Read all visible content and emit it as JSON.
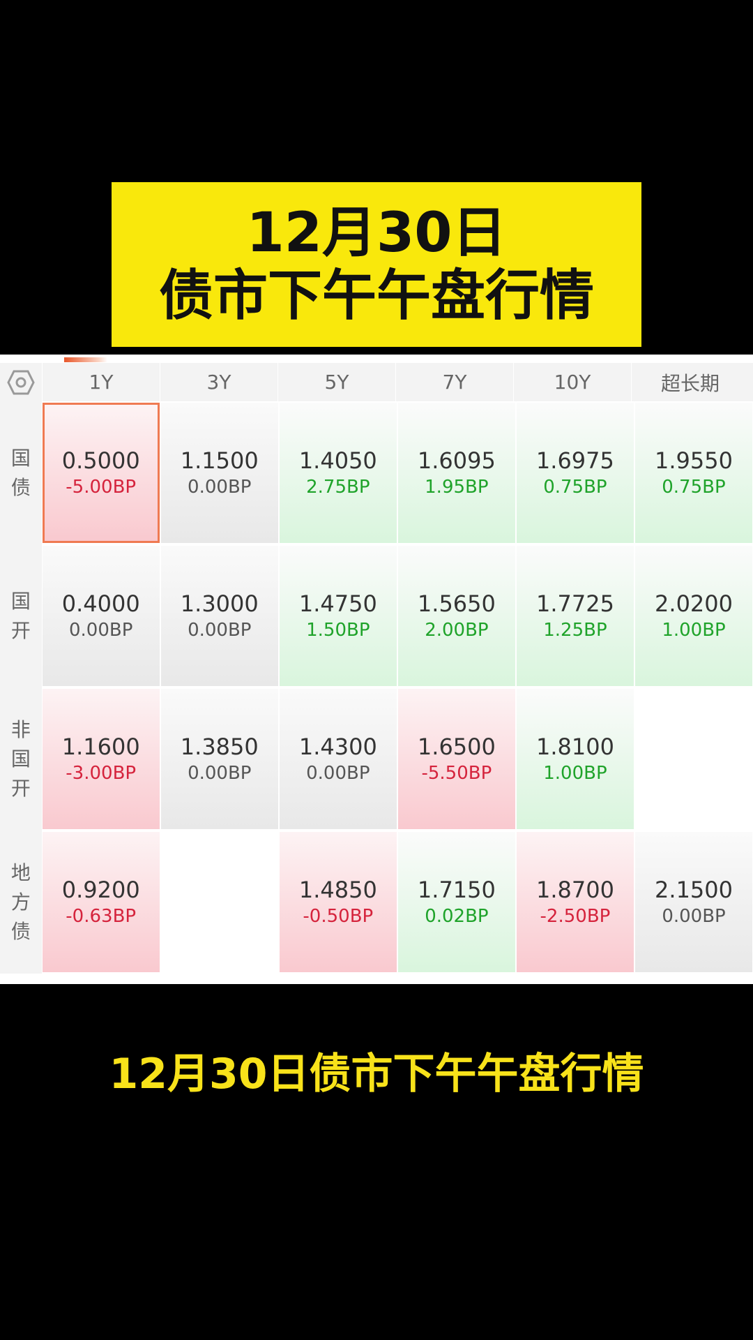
{
  "banner": {
    "line1": "12月30日",
    "line2": "债市下午午盘行情"
  },
  "table": {
    "columns": [
      "1Y",
      "3Y",
      "5Y",
      "7Y",
      "10Y",
      "超长期"
    ],
    "rows": [
      {
        "label": [
          "国",
          "债"
        ],
        "cells": [
          {
            "value": "0.5000",
            "change": "-5.00BP",
            "trend": "down",
            "selected": true
          },
          {
            "value": "1.1500",
            "change": "0.00BP",
            "trend": "flat"
          },
          {
            "value": "1.4050",
            "change": "2.75BP",
            "trend": "up"
          },
          {
            "value": "1.6095",
            "change": "1.95BP",
            "trend": "up"
          },
          {
            "value": "1.6975",
            "change": "0.75BP",
            "trend": "up"
          },
          {
            "value": "1.9550",
            "change": "0.75BP",
            "trend": "up"
          }
        ]
      },
      {
        "label": [
          "国",
          "开"
        ],
        "cells": [
          {
            "value": "0.4000",
            "change": "0.00BP",
            "trend": "flat"
          },
          {
            "value": "1.3000",
            "change": "0.00BP",
            "trend": "flat"
          },
          {
            "value": "1.4750",
            "change": "1.50BP",
            "trend": "up"
          },
          {
            "value": "1.5650",
            "change": "2.00BP",
            "trend": "up"
          },
          {
            "value": "1.7725",
            "change": "1.25BP",
            "trend": "up"
          },
          {
            "value": "2.0200",
            "change": "1.00BP",
            "trend": "up"
          }
        ]
      },
      {
        "label": [
          "非",
          "国",
          "开"
        ],
        "cells": [
          {
            "value": "1.1600",
            "change": "-3.00BP",
            "trend": "down"
          },
          {
            "value": "1.3850",
            "change": "0.00BP",
            "trend": "flat"
          },
          {
            "value": "1.4300",
            "change": "0.00BP",
            "trend": "flat"
          },
          {
            "value": "1.6500",
            "change": "-5.50BP",
            "trend": "down"
          },
          {
            "value": "1.8100",
            "change": "1.00BP",
            "trend": "up"
          },
          null
        ]
      },
      {
        "label": [
          "地",
          "方",
          "债"
        ],
        "cells": [
          {
            "value": "0.9200",
            "change": "-0.63BP",
            "trend": "down"
          },
          null,
          {
            "value": "1.4850",
            "change": "-0.50BP",
            "trend": "down"
          },
          {
            "value": "1.7150",
            "change": "0.02BP",
            "trend": "up"
          },
          {
            "value": "1.8700",
            "change": "-2.50BP",
            "trend": "down"
          },
          {
            "value": "2.1500",
            "change": "0.00BP",
            "trend": "flat"
          }
        ]
      }
    ]
  },
  "caption": "12月30日债市下午午盘行情",
  "colors": {
    "up": "#1fa32a",
    "down": "#d5233c",
    "banner": "#f9e80c",
    "caption": "#f8e21a"
  }
}
